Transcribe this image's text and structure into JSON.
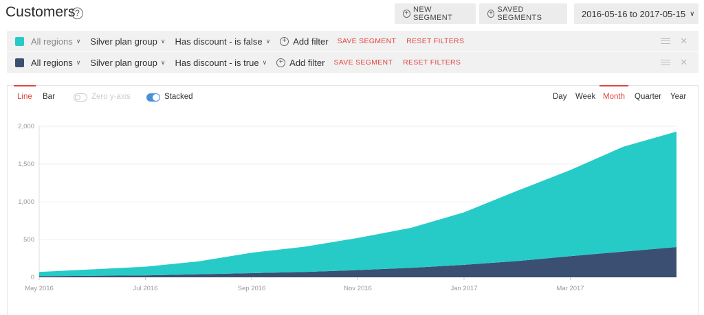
{
  "header": {
    "title": "Customers",
    "help_glyph": "?",
    "new_segment_label": "NEW SEGMENT",
    "saved_segments_label": "SAVED SEGMENTS",
    "date_range": "2016-05-16 to 2017-05-15"
  },
  "filters": [
    {
      "color": "#26cbc8",
      "region": "All regions",
      "plan": "Silver plan group",
      "discount": "Has discount - is false",
      "add_filter": "Add filter",
      "save_segment": "SAVE SEGMENT",
      "reset_filters": "RESET FILTERS"
    },
    {
      "color": "#3b4f73",
      "region": "All regions",
      "plan": "Silver plan group",
      "discount": "Has discount - is true",
      "add_filter": "Add filter",
      "save_segment": "SAVE SEGMENT",
      "reset_filters": "RESET FILTERS"
    }
  ],
  "chart_controls": {
    "type_tabs": [
      "Line",
      "Bar"
    ],
    "active_type": "Line",
    "zero_y_axis_label": "Zero y-axis",
    "zero_y_axis_on": false,
    "stacked_label": "Stacked",
    "stacked_on": true,
    "period_tabs": [
      "Day",
      "Week",
      "Month",
      "Quarter",
      "Year"
    ],
    "active_period": "Month"
  },
  "chart_data": {
    "type": "area",
    "stacked": true,
    "x": [
      "2016-05",
      "2016-06",
      "2016-07",
      "2016-08",
      "2016-09",
      "2016-10",
      "2016-11",
      "2016-12",
      "2017-01",
      "2017-02",
      "2017-03",
      "2017-04",
      "2017-05"
    ],
    "x_tick_labels": [
      "May 2016",
      "Jul 2016",
      "Sep 2016",
      "Nov 2016",
      "Jan 2017",
      "Mar 2017"
    ],
    "y_tick_labels": [
      "0",
      "500",
      "1,000",
      "1,500",
      "2,000"
    ],
    "ylim": [
      0,
      2000
    ],
    "grid": true,
    "series": [
      {
        "color": "#3b4f73",
        "values": [
          15,
          20,
          25,
          40,
          55,
          70,
          95,
          125,
          165,
          215,
          280,
          340,
          400
        ]
      },
      {
        "color": "#26cbc8",
        "values": [
          55,
          85,
          115,
          170,
          270,
          335,
          425,
          530,
          695,
          930,
          1140,
          1390,
          1530
        ]
      }
    ]
  }
}
